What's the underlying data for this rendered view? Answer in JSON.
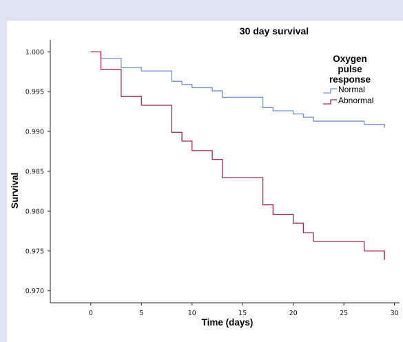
{
  "colors": {
    "background": "#dde3f2",
    "panel": "#ffffff",
    "normal": "#6f8fdc",
    "abnormal": "#a8244a"
  },
  "chart_data": {
    "type": "line",
    "subtype": "kaplan-meier step",
    "title": "30 day survival",
    "xlabel": "Time (days)",
    "ylabel": "Survival",
    "xlim": [
      -4,
      30.5
    ],
    "ylim": [
      0.9685,
      1.0015
    ],
    "x_ticks": [
      0,
      5,
      10,
      15,
      20,
      25,
      30
    ],
    "y_ticks": [
      0.97,
      0.975,
      0.98,
      0.985,
      0.99,
      0.995,
      1.0
    ],
    "y_tick_labels": [
      "0.970",
      "0.975",
      "0.980",
      "0.985",
      "0.990",
      "0.995",
      "1.000"
    ],
    "legend": {
      "title": [
        "Oxygen",
        "pulse",
        "response"
      ],
      "position": "top-right",
      "entries": [
        "Normal",
        "Abnormal"
      ]
    },
    "grid": false,
    "series": [
      {
        "name": "Normal",
        "color": "#6f8fdc",
        "steps": [
          [
            0,
            1.0
          ],
          [
            1,
            0.9992
          ],
          [
            3,
            0.998
          ],
          [
            5,
            0.9976
          ],
          [
            8,
            0.9963
          ],
          [
            9,
            0.9959
          ],
          [
            10,
            0.9955
          ],
          [
            12,
            0.9951
          ],
          [
            13,
            0.9943
          ],
          [
            17,
            0.993
          ],
          [
            18,
            0.9926
          ],
          [
            20,
            0.9922
          ],
          [
            21,
            0.9918
          ],
          [
            22,
            0.9913
          ],
          [
            27,
            0.9909
          ],
          [
            29,
            0.9905
          ]
        ],
        "end_x": 29
      },
      {
        "name": "Abnormal",
        "color": "#a8244a",
        "steps": [
          [
            0,
            1.0
          ],
          [
            1,
            0.9978
          ],
          [
            3,
            0.9944
          ],
          [
            5,
            0.9933
          ],
          [
            8,
            0.9899
          ],
          [
            9,
            0.9888
          ],
          [
            10,
            0.9876
          ],
          [
            12,
            0.9865
          ],
          [
            13,
            0.9842
          ],
          [
            17,
            0.9808
          ],
          [
            18,
            0.9796
          ],
          [
            20,
            0.9785
          ],
          [
            21,
            0.9773
          ],
          [
            22,
            0.9762
          ],
          [
            27,
            0.975
          ],
          [
            29,
            0.9739
          ]
        ],
        "end_x": 29
      }
    ]
  }
}
